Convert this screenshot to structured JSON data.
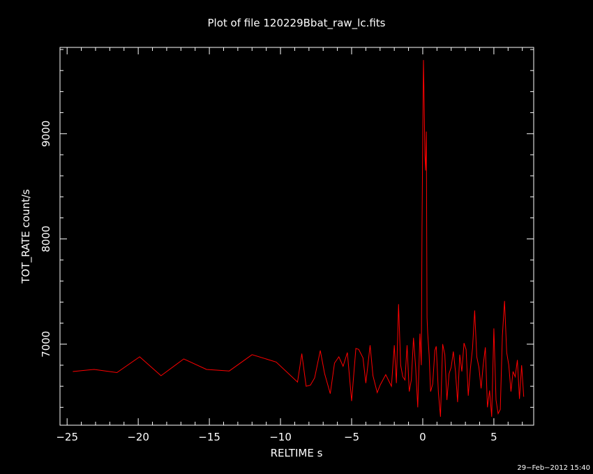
{
  "chart_data": {
    "type": "line",
    "title": "Plot of file 120229Bbat_raw_lc.fits",
    "xlabel": "RELTIME  s",
    "ylabel": "TOT_RATE  count/s",
    "xlim": [
      -25.5,
      7.8
    ],
    "ylim": [
      6230,
      9820
    ],
    "xticks": [
      -25,
      -20,
      -15,
      -10,
      -5,
      0,
      5
    ],
    "xtick_labels": [
      "−25",
      "−20",
      "−15",
      "−10",
      "−5",
      "0",
      "5"
    ],
    "yticks": [
      7000,
      8000,
      9000
    ],
    "ytick_labels": [
      "7000",
      "8000",
      "9000"
    ],
    "grid": false,
    "series": [
      {
        "color": "#ff0000",
        "x": [
          -24.6,
          -23.1,
          -21.5,
          -19.9,
          -18.4,
          -16.8,
          -15.2,
          -13.6,
          -12.0,
          -10.3,
          -8.8,
          -8.5,
          -8.2,
          -7.9,
          -7.6,
          -7.2,
          -6.9,
          -6.5,
          -6.2,
          -5.9,
          -5.6,
          -5.3,
          -5.0,
          -4.7,
          -4.5,
          -4.2,
          -4.0,
          -3.7,
          -3.5,
          -3.2,
          -3.0,
          -2.6,
          -2.2,
          -2.0,
          -1.85,
          -1.7,
          -1.55,
          -1.4,
          -1.25,
          -1.1,
          -0.95,
          -0.8,
          -0.65,
          -0.5,
          -0.35,
          -0.2,
          -0.1,
          -0.05,
          0.0,
          0.05,
          0.1,
          0.15,
          0.2,
          0.25,
          0.3,
          0.35,
          0.45,
          0.55,
          0.7,
          0.85,
          0.95,
          1.1,
          1.25,
          1.4,
          1.55,
          1.7,
          1.85,
          2.0,
          2.15,
          2.3,
          2.45,
          2.6,
          2.75,
          2.9,
          3.05,
          3.2,
          3.35,
          3.5,
          3.65,
          3.8,
          3.95,
          4.1,
          4.25,
          4.4,
          4.55,
          4.7,
          4.85,
          5.0,
          5.15,
          5.3,
          5.45,
          5.6,
          5.75,
          5.9,
          6.05,
          6.2,
          6.35,
          6.5,
          6.65,
          6.8,
          6.95,
          7.1
        ],
        "y": [
          6740,
          6760,
          6730,
          6880,
          6700,
          6860,
          6760,
          6745,
          6900,
          6830,
          6640,
          6910,
          6600,
          6610,
          6680,
          6940,
          6720,
          6530,
          6820,
          6880,
          6790,
          6920,
          6460,
          6960,
          6950,
          6870,
          6630,
          6990,
          6700,
          6540,
          6610,
          6710,
          6600,
          6990,
          6630,
          7380,
          6800,
          6690,
          6660,
          6990,
          6550,
          6660,
          7060,
          6780,
          6400,
          7100,
          6800,
          8100,
          9000,
          9700,
          9300,
          8800,
          8650,
          9020,
          7250,
          7100,
          6900,
          6550,
          6620,
          6940,
          6980,
          6540,
          6310,
          7000,
          6900,
          6470,
          6720,
          6780,
          6930,
          6740,
          6450,
          6900,
          6740,
          7010,
          6950,
          6510,
          6770,
          6960,
          7320,
          6880,
          6780,
          6580,
          6800,
          6970,
          6400,
          6560,
          6310,
          7150,
          6470,
          6340,
          6380,
          7080,
          7410,
          6920,
          6800,
          6550,
          6740,
          6690,
          6850,
          6480,
          6800,
          6500
        ]
      }
    ]
  },
  "timestamp": "29−Feb−2012 15:40"
}
